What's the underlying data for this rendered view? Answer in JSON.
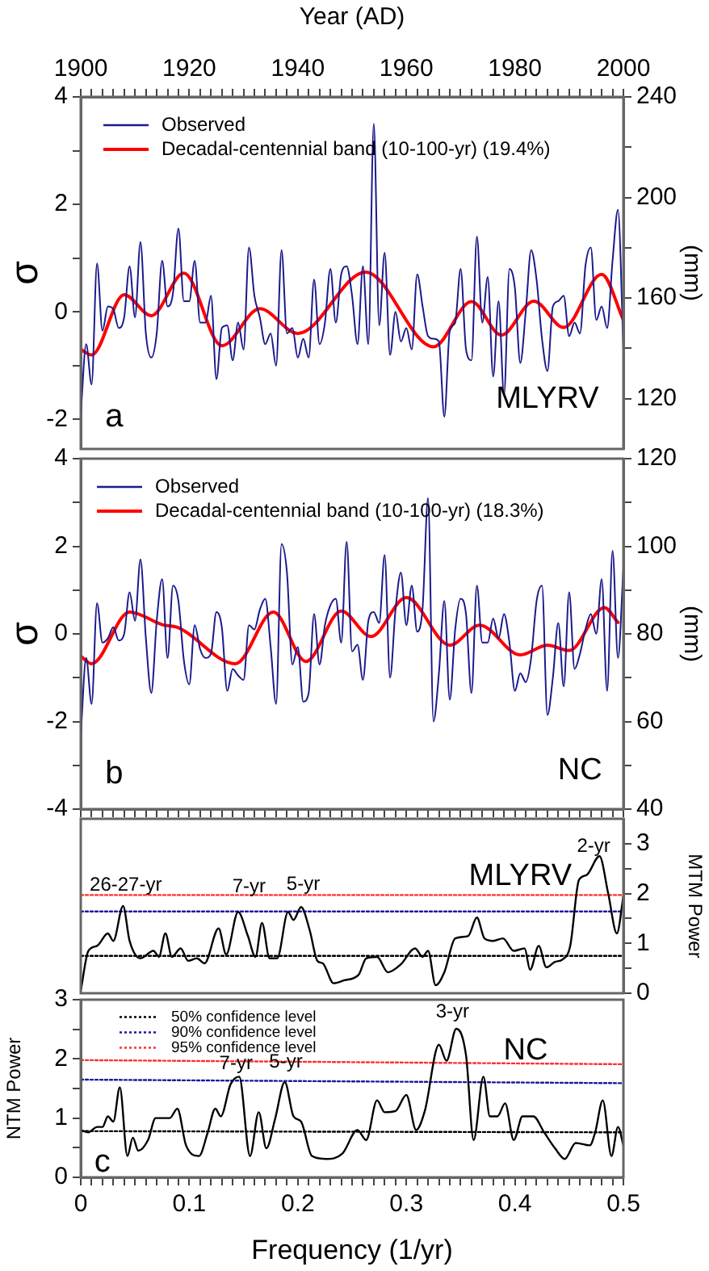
{
  "chart_data": [
    {
      "type": "line",
      "xlabel": "Year (AD)",
      "ylabel": "σ",
      "y2label": "(mm)",
      "xlim": [
        1900,
        2000
      ],
      "xticks": [
        1900,
        {
          "value": 1902,
          "label": null
        },
        {
          "value": 1904,
          "label": null
        },
        {
          "value": 1906,
          "label": null
        },
        {
          "value": 1908,
          "label": null
        },
        {
          "value": 1910,
          "label": null
        },
        {
          "value": 1912,
          "label": null
        },
        {
          "value": 1914,
          "label": null
        },
        {
          "value": 1916,
          "label": null
        },
        {
          "value": 1918,
          "label": null
        },
        1920,
        {
          "value": 1922,
          "label": null
        },
        {
          "value": 1924,
          "label": null
        },
        {
          "value": 1926,
          "label": null
        },
        {
          "value": 1928,
          "label": null
        },
        {
          "value": 1930,
          "label": null
        },
        {
          "value": 1932,
          "label": null
        },
        {
          "value": 1934,
          "label": null
        },
        {
          "value": 1936,
          "label": null
        },
        {
          "value": 1938,
          "label": null
        },
        1940,
        {
          "value": 1942,
          "label": null
        },
        {
          "value": 1944,
          "label": null
        },
        {
          "value": 1946,
          "label": null
        },
        {
          "value": 1948,
          "label": null
        },
        {
          "value": 1950,
          "label": null
        },
        {
          "value": 1952,
          "label": null
        },
        {
          "value": 1954,
          "label": null
        },
        {
          "value": 1956,
          "label": null
        },
        {
          "value": 1958,
          "label": null
        },
        1960,
        {
          "value": 1962,
          "label": null
        },
        {
          "value": 1964,
          "label": null
        },
        {
          "value": 1966,
          "label": null
        },
        {
          "value": 1968,
          "label": null
        },
        {
          "value": 1970,
          "label": null
        },
        {
          "value": 1972,
          "label": null
        },
        {
          "value": 1974,
          "label": null
        },
        {
          "value": 1976,
          "label": null
        },
        {
          "value": 1978,
          "label": null
        },
        1980,
        {
          "value": 1982,
          "label": null
        },
        {
          "value": 1984,
          "label": null
        },
        {
          "value": 1986,
          "label": null
        },
        {
          "value": 1988,
          "label": null
        },
        {
          "value": 1990,
          "label": null
        },
        {
          "value": 1992,
          "label": null
        },
        {
          "value": 1994,
          "label": null
        },
        {
          "value": 1996,
          "label": null
        },
        {
          "value": 1998,
          "label": null
        },
        2000
      ],
      "ylim": [
        -2.55,
        4
      ],
      "yticks": [
        -2,
        {
          "value": -1,
          "label": null
        },
        0,
        {
          "value": 1,
          "label": null
        },
        2,
        {
          "value": 3,
          "label": null
        },
        4
      ],
      "y2lim": [
        100,
        240
      ],
      "y2ticks": [
        120,
        {
          "value": 140,
          "label": null
        },
        160,
        {
          "value": 180,
          "label": null
        },
        200,
        {
          "value": 220,
          "label": null
        },
        240
      ],
      "legend": "top left",
      "x": [
        1900,
        1901,
        1902,
        1903,
        1904,
        1905,
        1906,
        1907,
        1908,
        1909,
        1910,
        1911,
        1912,
        1913,
        1914,
        1915,
        1916,
        1917,
        1918,
        1919,
        1920,
        1921,
        1922,
        1923,
        1924,
        1925,
        1926,
        1927,
        1928,
        1929,
        1930,
        1931,
        1932,
        1933,
        1934,
        1935,
        1936,
        1937,
        1938,
        1939,
        1940,
        1941,
        1942,
        1943,
        1944,
        1945,
        1946,
        1947,
        1948,
        1949,
        1950,
        1951,
        1952,
        1953,
        1954,
        1955,
        1956,
        1957,
        1958,
        1959,
        1960,
        1961,
        1962,
        1963,
        1964,
        1965,
        1966,
        1967,
        1968,
        1969,
        1970,
        1971,
        1972,
        1973,
        1974,
        1975,
        1976,
        1977,
        1978,
        1979,
        1980,
        1981,
        1982,
        1983,
        1984,
        1985,
        1986,
        1987,
        1988,
        1989,
        1990,
        1991,
        1992,
        1993,
        1994,
        1995,
        1996,
        1997,
        1998,
        1999,
        2000
      ],
      "series": [
        {
          "name": "Observed",
          "color": "#1a1a8c",
          "values": [
            -1.9,
            -0.6,
            -1.35,
            0.9,
            -0.35,
            0.1,
            0.05,
            -0.3,
            -0.1,
            0.85,
            -0.1,
            1.3,
            -0.4,
            -0.85,
            -0.4,
            0.95,
            0.1,
            0.35,
            1.55,
            0.2,
            0.2,
            0.95,
            -0.2,
            -0.2,
            0.3,
            -1.25,
            -0.3,
            -0.25,
            -0.9,
            -0.2,
            -0.7,
            1.2,
            0.3,
            -0.1,
            -0.6,
            -0.4,
            -1.0,
            1.15,
            -0.4,
            -0.3,
            -0.85,
            -0.5,
            -0.85,
            0.6,
            -0.6,
            -0.2,
            0.8,
            -0.2,
            0.7,
            0.85,
            0.3,
            -0.6,
            0.85,
            -0.6,
            3.5,
            -0.25,
            1.1,
            -0.8,
            0.0,
            -0.55,
            -0.3,
            -0.7,
            0.7,
            0.1,
            -0.45,
            -0.5,
            -0.55,
            -1.95,
            -0.35,
            -0.2,
            0.8,
            -0.7,
            -0.9,
            1.4,
            -0.2,
            0.65,
            -1.2,
            0.2,
            -1.55,
            0.8,
            0.45,
            -0.95,
            0.0,
            1.15,
            0.6,
            -0.5,
            -1.1,
            0.1,
            0.2,
            0.3,
            -0.45,
            -0.2,
            -0.4,
            0.85,
            1.2,
            -0.15,
            0.1,
            -0.3,
            0.95,
            1.9,
            -0.7
          ]
        },
        {
          "name": "Decadal-centennial band (10-100-yr) (19.4%)",
          "color": "#ff0000",
          "x": [
            1900,
            1902,
            1908,
            1913,
            1919,
            1926,
            1933,
            1940,
            1952.5,
            1965,
            1972,
            1977.5,
            1983.5,
            1989,
            1996,
            2000
          ],
          "values": [
            -0.7,
            -0.8,
            0.32,
            -0.07,
            0.72,
            -0.63,
            0.06,
            -0.4,
            0.74,
            -0.65,
            0.19,
            -0.43,
            0.2,
            -0.29,
            0.7,
            -0.15
          ]
        }
      ],
      "annotations": [
        "a",
        "MLYRV"
      ]
    },
    {
      "type": "line",
      "ylabel": "σ",
      "y2label": "(mm)",
      "xlim": [
        1900,
        2000
      ],
      "xticks": [
        1900,
        {
          "value": 1902,
          "label": null
        },
        {
          "value": 1904,
          "label": null
        },
        {
          "value": 1906,
          "label": null
        },
        {
          "value": 1908,
          "label": null
        },
        {
          "value": 1910,
          "label": null
        },
        {
          "value": 1912,
          "label": null
        },
        {
          "value": 1914,
          "label": null
        },
        {
          "value": 1916,
          "label": null
        },
        {
          "value": 1918,
          "label": null
        },
        1920,
        {
          "value": 1922,
          "label": null
        },
        {
          "value": 1924,
          "label": null
        },
        {
          "value": 1926,
          "label": null
        },
        {
          "value": 1928,
          "label": null
        },
        {
          "value": 1930,
          "label": null
        },
        {
          "value": 1932,
          "label": null
        },
        {
          "value": 1934,
          "label": null
        },
        {
          "value": 1936,
          "label": null
        },
        {
          "value": 1938,
          "label": null
        },
        1940,
        {
          "value": 1942,
          "label": null
        },
        {
          "value": 1944,
          "label": null
        },
        {
          "value": 1946,
          "label": null
        },
        {
          "value": 1948,
          "label": null
        },
        {
          "value": 1950,
          "label": null
        },
        {
          "value": 1952,
          "label": null
        },
        {
          "value": 1954,
          "label": null
        },
        {
          "value": 1956,
          "label": null
        },
        {
          "value": 1958,
          "label": null
        },
        1960,
        {
          "value": 1962,
          "label": null
        },
        {
          "value": 1964,
          "label": null
        },
        {
          "value": 1966,
          "label": null
        },
        {
          "value": 1968,
          "label": null
        },
        {
          "value": 1970,
          "label": null
        },
        {
          "value": 1972,
          "label": null
        },
        {
          "value": 1974,
          "label": null
        },
        {
          "value": 1976,
          "label": null
        },
        {
          "value": 1978,
          "label": null
        },
        1980,
        {
          "value": 1982,
          "label": null
        },
        {
          "value": 1984,
          "label": null
        },
        {
          "value": 1986,
          "label": null
        },
        {
          "value": 1988,
          "label": null
        },
        {
          "value": 1990,
          "label": null
        },
        {
          "value": 1992,
          "label": null
        },
        {
          "value": 1994,
          "label": null
        },
        {
          "value": 1996,
          "label": null
        },
        {
          "value": 1998,
          "label": null
        },
        2000
      ],
      "ylim": [
        -4,
        4
      ],
      "yticks": [
        -4,
        {
          "value": -3,
          "label": null
        },
        -2,
        {
          "value": -1,
          "label": null
        },
        0,
        {
          "value": 1,
          "label": null
        },
        2,
        {
          "value": 3,
          "label": null
        },
        4
      ],
      "y2lim": [
        40,
        120
      ],
      "y2ticks": [
        40,
        {
          "value": 50,
          "label": null
        },
        60,
        {
          "value": 70,
          "label": null
        },
        80,
        {
          "value": 90,
          "label": null
        },
        100,
        {
          "value": 110,
          "label": null
        },
        120
      ],
      "tick_labels": "y",
      "legend": "top left",
      "x": [
        1900,
        1901,
        1902,
        1903,
        1904,
        1905,
        1906,
        1907,
        1908,
        1909,
        1910,
        1911,
        1912,
        1913,
        1914,
        1915,
        1916,
        1917,
        1918,
        1919,
        1920,
        1921,
        1922,
        1923,
        1924,
        1925,
        1926,
        1927,
        1928,
        1929,
        1930,
        1931,
        1932,
        1933,
        1934,
        1935,
        1936,
        1937,
        1938,
        1939,
        1940,
        1941,
        1942,
        1943,
        1944,
        1945,
        1946,
        1947,
        1948,
        1949,
        1950,
        1951,
        1952,
        1953,
        1954,
        1955,
        1956,
        1957,
        1958,
        1959,
        1960,
        1961,
        1962,
        1963,
        1964,
        1965,
        1966,
        1967,
        1968,
        1969,
        1970,
        1971,
        1972,
        1973,
        1974,
        1975,
        1976,
        1977,
        1978,
        1979,
        1980,
        1981,
        1982,
        1983,
        1984,
        1985,
        1986,
        1987,
        1988,
        1989,
        1990,
        1991,
        1992,
        1993,
        1994,
        1995,
        1996,
        1997,
        1998,
        1999,
        2000
      ],
      "series": [
        {
          "name": "Observed",
          "color": "#1a1a8c",
          "values": [
            -2.3,
            -0.55,
            -1.6,
            0.7,
            -0.2,
            -0.1,
            0.15,
            -0.15,
            0.0,
            0.95,
            0.3,
            1.7,
            -0.1,
            -1.35,
            0.3,
            1.25,
            -0.55,
            1.1,
            0.75,
            -0.6,
            -1.15,
            0.2,
            -0.35,
            -0.55,
            -0.45,
            0.5,
            0.15,
            -1.3,
            -0.8,
            -0.95,
            -1.05,
            0.2,
            0.1,
            0.55,
            0.8,
            -0.3,
            -1.6,
            2.05,
            1.4,
            -0.7,
            -0.3,
            -1.55,
            -1.35,
            0.45,
            -0.7,
            0.2,
            0.65,
            0.8,
            -0.2,
            2.1,
            -0.4,
            -0.25,
            -1.05,
            0.3,
            0.5,
            0.25,
            1.8,
            -1.0,
            0.55,
            1.4,
            0.2,
            1.1,
            0.05,
            0.6,
            3.1,
            -2.0,
            -0.9,
            0.75,
            -1.5,
            0.1,
            0.8,
            0.45,
            -1.35,
            1.1,
            -0.2,
            -0.2,
            0.35,
            -0.1,
            0.45,
            -0.2,
            -1.3,
            -0.9,
            -1.1,
            -0.55,
            0.75,
            1.1,
            -1.85,
            -1.0,
            0.25,
            -1.2,
            0.95,
            -0.8,
            -0.45,
            0.1,
            0.45,
            0.0,
            1.25,
            -1.3,
            1.9,
            -0.55,
            1.5
          ]
        },
        {
          "name": "Decadal-centennial band (10-100-yr) (18.3%)",
          "color": "#ff0000",
          "x": [
            1900,
            1902,
            1909,
            1915,
            1918,
            1928.5,
            1935.5,
            1941.5,
            1948,
            1953.5,
            1960,
            1968,
            1973.5,
            1981,
            1986,
            1990,
            1996.5,
            1999
          ],
          "values": [
            -0.51,
            -0.68,
            0.5,
            0.21,
            0.14,
            -0.68,
            0.5,
            -0.63,
            0.52,
            -0.06,
            0.83,
            -0.26,
            0.2,
            -0.48,
            -0.26,
            -0.38,
            0.6,
            0.26
          ]
        }
      ],
      "annotations": [
        "b",
        "NC"
      ]
    },
    {
      "type": "line",
      "y2label": "MTM Power",
      "xlim": [
        0,
        0.5
      ],
      "y2lim": [
        0,
        3.5
      ],
      "y2ticks": [
        0,
        {
          "value": 0.5,
          "label": null
        },
        1,
        {
          "value": 1.5,
          "label": null
        },
        2,
        {
          "value": 2.5,
          "label": null
        },
        3
      ],
      "tick_labels": "y2",
      "series": [
        {
          "color": "#000000",
          "axis": "y2",
          "x": [
            0,
            0.007,
            0.015,
            0.025,
            0.03,
            0.039,
            0.045,
            0.055,
            0.067,
            0.072,
            0.078,
            0.084,
            0.092,
            0.099,
            0.107,
            0.114,
            0.127,
            0.134,
            0.145,
            0.154,
            0.161,
            0.167,
            0.174,
            0.181,
            0.191,
            0.196,
            0.203,
            0.211,
            0.218,
            0.223,
            0.233,
            0.243,
            0.256,
            0.263,
            0.273,
            0.283,
            0.295,
            0.308,
            0.315,
            0.32,
            0.327,
            0.335,
            0.345,
            0.357,
            0.365,
            0.372,
            0.38,
            0.389,
            0.399,
            0.409,
            0.414,
            0.422,
            0.429,
            0.437,
            0.444,
            0.451,
            0.459,
            0.466,
            0.478,
            0.486,
            0.494,
            0.5
          ],
          "values": [
            0.05,
            0.85,
            0.95,
            1.2,
            1.05,
            1.75,
            1.05,
            0.7,
            0.85,
            0.73,
            1.2,
            0.73,
            0.9,
            0.65,
            0.7,
            0.6,
            1.3,
            0.78,
            1.63,
            1.15,
            0.73,
            1.41,
            0.7,
            0.7,
            1.63,
            1.47,
            1.73,
            1.26,
            0.65,
            0.6,
            0.2,
            0.26,
            0.37,
            0.7,
            0.73,
            0.42,
            0.58,
            0.9,
            0.73,
            0.85,
            0.16,
            0.42,
            1.1,
            1.15,
            1.52,
            1.1,
            1.05,
            1.1,
            0.85,
            0.9,
            0.47,
            0.95,
            0.52,
            0.63,
            0.68,
            0.95,
            2.27,
            2.37,
            2.75,
            2.0,
            1.2,
            1.95
          ]
        },
        {
          "color": "#000000",
          "axis": "y2",
          "line_style": "dotted",
          "x": [
            0,
            0.5
          ],
          "values": [
            0.75,
            0.75
          ]
        },
        {
          "color": "#1a1aa0",
          "axis": "y2",
          "line_style": "dotted",
          "x": [
            0,
            0.5
          ],
          "values": [
            1.64,
            1.64
          ]
        },
        {
          "color": "#ff3030",
          "axis": "y2",
          "line_style": "dotted",
          "x": [
            0,
            0.5
          ],
          "values": [
            1.97,
            1.97
          ]
        }
      ],
      "annotations": [
        "MLYRV",
        "26-27-yr",
        "7-yr",
        "5-yr",
        "2-yr"
      ]
    },
    {
      "type": "line",
      "xlabel": "Frequency (1/yr)",
      "ylabel": "NTM Power",
      "xlim": [
        0,
        0.5
      ],
      "xticks": [
        0,
        {
          "value": 0.01,
          "label": null
        },
        {
          "value": 0.02,
          "label": null
        },
        {
          "value": 0.03,
          "label": null
        },
        {
          "value": 0.04,
          "label": null
        },
        {
          "value": 0.05,
          "label": null
        },
        {
          "value": 0.06,
          "label": null
        },
        {
          "value": 0.07,
          "label": null
        },
        {
          "value": 0.08,
          "label": null
        },
        {
          "value": 0.09,
          "label": null
        },
        0.1,
        {
          "value": 0.11,
          "label": null
        },
        {
          "value": 0.12,
          "label": null
        },
        {
          "value": 0.13,
          "label": null
        },
        {
          "value": 0.14,
          "label": null
        },
        {
          "value": 0.15,
          "label": null
        },
        {
          "value": 0.16,
          "label": null
        },
        {
          "value": 0.17,
          "label": null
        },
        {
          "value": 0.18,
          "label": null
        },
        {
          "value": 0.19,
          "label": null
        },
        0.2,
        {
          "value": 0.21,
          "label": null
        },
        {
          "value": 0.22,
          "label": null
        },
        {
          "value": 0.23,
          "label": null
        },
        {
          "value": 0.24,
          "label": null
        },
        {
          "value": 0.25,
          "label": null
        },
        {
          "value": 0.26,
          "label": null
        },
        {
          "value": 0.27,
          "label": null
        },
        {
          "value": 0.28,
          "label": null
        },
        {
          "value": 0.29,
          "label": null
        },
        0.3,
        {
          "value": 0.31,
          "label": null
        },
        {
          "value": 0.32,
          "label": null
        },
        {
          "value": 0.33,
          "label": null
        },
        {
          "value": 0.34,
          "label": null
        },
        {
          "value": 0.35,
          "label": null
        },
        {
          "value": 0.36,
          "label": null
        },
        {
          "value": 0.37,
          "label": null
        },
        {
          "value": 0.38,
          "label": null
        },
        {
          "value": 0.39,
          "label": null
        },
        0.4,
        {
          "value": 0.41,
          "label": null
        },
        {
          "value": 0.42,
          "label": null
        },
        {
          "value": 0.43,
          "label": null
        },
        {
          "value": 0.44,
          "label": null
        },
        {
          "value": 0.45,
          "label": null
        },
        {
          "value": 0.46,
          "label": null
        },
        {
          "value": 0.47,
          "label": null
        },
        {
          "value": 0.48,
          "label": null
        },
        {
          "value": 0.49,
          "label": null
        },
        0.5
      ],
      "ylim": [
        0,
        3
      ],
      "yticks": [
        0,
        {
          "value": 0.5,
          "label": null
        },
        1,
        {
          "value": 1.5,
          "label": null
        },
        2,
        {
          "value": 2.5,
          "label": null
        },
        3
      ],
      "legend": "top left",
      "series": [
        {
          "color": "#000000",
          "x": [
            0,
            0.007,
            0.015,
            0.02,
            0.025,
            0.03,
            0.036,
            0.043,
            0.048,
            0.053,
            0.062,
            0.069,
            0.082,
            0.089,
            0.097,
            0.109,
            0.117,
            0.124,
            0.129,
            0.138,
            0.146,
            0.156,
            0.164,
            0.171,
            0.179,
            0.188,
            0.196,
            0.203,
            0.213,
            0.226,
            0.241,
            0.255,
            0.263,
            0.273,
            0.28,
            0.29,
            0.3,
            0.309,
            0.317,
            0.33,
            0.337,
            0.346,
            0.355,
            0.362,
            0.371,
            0.377,
            0.384,
            0.391,
            0.399,
            0.407,
            0.417,
            0.427,
            0.437,
            0.446,
            0.456,
            0.469,
            0.474,
            0.481,
            0.489,
            0.495,
            0.5
          ],
          "values": [
            0.8,
            0.76,
            0.85,
            0.85,
            1.03,
            0.94,
            1.52,
            0.36,
            0.67,
            0.45,
            0.63,
            1.0,
            1.0,
            1.16,
            0.54,
            0.36,
            0.76,
            1.16,
            1.03,
            1.57,
            1.7,
            0.36,
            1.1,
            0.49,
            0.98,
            1.61,
            1.03,
            0.94,
            0.36,
            0.31,
            0.4,
            0.8,
            0.63,
            1.3,
            1.1,
            1.12,
            1.39,
            0.8,
            1.12,
            2.24,
            1.97,
            2.51,
            2.06,
            0.63,
            1.7,
            1.03,
            1.03,
            1.25,
            0.63,
            1.03,
            1.03,
            0.76,
            0.49,
            0.31,
            0.58,
            0.54,
            0.76,
            1.3,
            0.36,
            0.85,
            0.54
          ]
        },
        {
          "name": "50% confidence level",
          "color": "#000000",
          "line_style": "dotted",
          "x": [
            0,
            0.5
          ],
          "values": [
            0.78,
            0.76
          ]
        },
        {
          "name": "90% confidence level",
          "color": "#1a1aa0",
          "line_style": "dotted",
          "x": [
            0,
            0.5
          ],
          "values": [
            1.65,
            1.59
          ]
        },
        {
          "name": "95% confidence level",
          "color": "#ff3030",
          "line_style": "dotted",
          "x": [
            0,
            0.5
          ],
          "values": [
            1.98,
            1.91
          ]
        }
      ],
      "annotations": [
        "c",
        "NC",
        "3-yr",
        "7-yr",
        "5-yr"
      ]
    }
  ]
}
